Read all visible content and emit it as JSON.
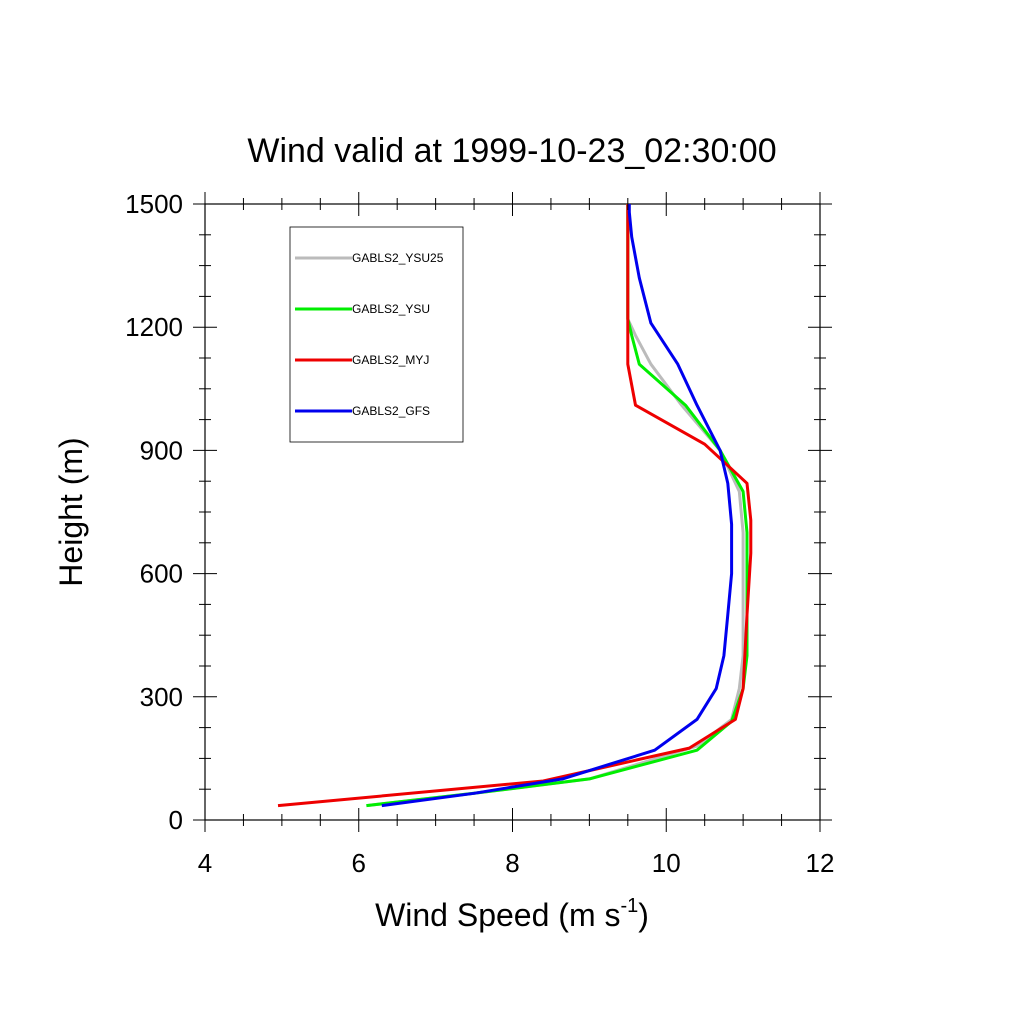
{
  "chart_data": {
    "type": "line",
    "title": "Wind valid at 1999-10-23_02:30:00",
    "xlabel": "Wind Speed (m s",
    "xlabel_sup": "-1",
    "xlabel_tail": ")",
    "ylabel": "Height (m)",
    "xlim": [
      4,
      12
    ],
    "ylim": [
      0,
      1500
    ],
    "xticks": [
      "4",
      "6",
      "8",
      "10",
      "12"
    ],
    "yticks": [
      "0",
      "300",
      "600",
      "900",
      "1200",
      "1500"
    ],
    "grid": false,
    "legend_position": "top-left",
    "series": [
      {
        "name": "GABLS2_YSU25",
        "color": "#bbbbbb",
        "x": [
          6.1,
          7.5,
          9.0,
          10.4,
          10.85,
          10.95,
          11.0,
          11.0,
          11.0,
          10.95,
          10.7,
          10.2,
          9.8,
          9.6,
          9.5,
          9.5,
          9.5,
          9.5
        ],
        "y": [
          35,
          65,
          100,
          180,
          245,
          320,
          400,
          550,
          700,
          800,
          900,
          1010,
          1110,
          1180,
          1220,
          1300,
          1400,
          1500
        ]
      },
      {
        "name": "GABLS2_YSU",
        "color": "#00ee00",
        "x": [
          6.1,
          7.5,
          9.0,
          10.4,
          10.85,
          11.0,
          11.05,
          11.05,
          11.05,
          11.0,
          10.7,
          10.25,
          9.65,
          9.55,
          9.5,
          9.5,
          9.5,
          9.5
        ],
        "y": [
          35,
          65,
          100,
          170,
          240,
          320,
          400,
          550,
          700,
          800,
          900,
          1010,
          1110,
          1180,
          1220,
          1300,
          1400,
          1500
        ]
      },
      {
        "name": "GABLS2_MYJ",
        "color": "#ee0000",
        "x": [
          4.95,
          8.4,
          10.3,
          10.9,
          11.0,
          11.05,
          11.1,
          11.1,
          11.05,
          10.5,
          9.6,
          9.5,
          9.5,
          9.5,
          9.5
        ],
        "y": [
          35,
          95,
          175,
          245,
          320,
          500,
          650,
          730,
          820,
          915,
          1010,
          1110,
          1200,
          1350,
          1500
        ]
      },
      {
        "name": "GABLS2_GFS",
        "color": "#0000ee",
        "x": [
          6.3,
          7.5,
          8.65,
          9.85,
          10.4,
          10.65,
          10.75,
          10.8,
          10.85,
          10.85,
          10.8,
          10.7,
          10.4,
          10.15,
          9.8,
          9.65,
          9.55,
          9.52,
          9.52
        ],
        "y": [
          35,
          65,
          100,
          170,
          245,
          320,
          400,
          500,
          600,
          720,
          820,
          900,
          1010,
          1110,
          1210,
          1320,
          1420,
          1480,
          1500
        ]
      }
    ]
  }
}
